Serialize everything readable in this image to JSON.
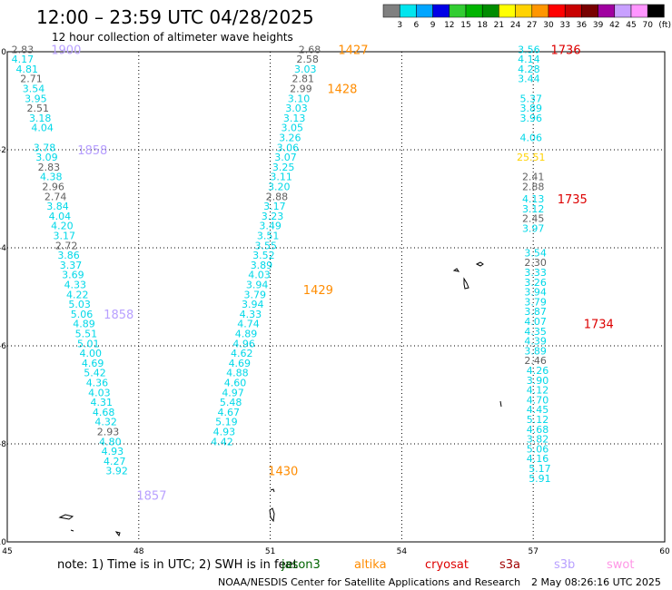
{
  "header": {
    "title": "12:00 – 23:59 UTC 04/28/2025",
    "subtitle": "12 hour collection of altimeter wave heights"
  },
  "colorbar": {
    "labels": [
      "3",
      "6",
      "9",
      "12",
      "15",
      "18",
      "21",
      "24",
      "27",
      "30",
      "33",
      "36",
      "39",
      "42",
      "45",
      "70"
    ],
    "unit": "(ft)",
    "colors": [
      "#808080",
      "#00e5ee",
      "#00a5ff",
      "#0000e6",
      "#32cd32",
      "#00b400",
      "#008c00",
      "#ffff00",
      "#ffd200",
      "#ff9600",
      "#ff0000",
      "#c80000",
      "#780000",
      "#a000a0",
      "#c8a0ff",
      "#ff96ff",
      "#000000"
    ]
  },
  "footer": {
    "note": "note:  1) Time is in UTC; 2) SWH is in feet",
    "credit": "NOAA/NESDIS Center for Satellite Applications and Research",
    "timestamp": "2 May 08:26:16 UTC 2025",
    "legend": [
      {
        "name": "jason3",
        "color": "#006400"
      },
      {
        "name": "altika",
        "color": "#ff8c00"
      },
      {
        "name": "cryosat",
        "color": "#dd0000"
      },
      {
        "name": "s3a",
        "color": "#a00000"
      },
      {
        "name": "s3b",
        "color": "#b8a0ff"
      },
      {
        "name": "swot",
        "color": "#ff96e6"
      }
    ]
  },
  "chart_data": {
    "type": "scatter",
    "xlim": [
      45,
      60
    ],
    "ylim": [
      -10,
      0
    ],
    "x_ticks": [
      45,
      48,
      51,
      54,
      57,
      60
    ],
    "y_ticks": [
      0,
      -2,
      -4,
      -6,
      -8,
      -10
    ],
    "grid": true,
    "tracks": [
      {
        "label_color": "#b8a0ff",
        "time_labels": [
          {
            "text": "1900",
            "x": 46.0,
            "y": 0.05
          },
          {
            "text": "1858",
            "x": 46.6,
            "y": -2.0
          },
          {
            "text": "1858",
            "x": 47.2,
            "y": -5.35
          },
          {
            "text": "1857",
            "x": 47.95,
            "y": -9.05
          }
        ],
        "points": [
          {
            "x": 45.35,
            "y": 0.05,
            "v": "2.83"
          },
          {
            "x": 45.35,
            "y": -0.15,
            "v": "4.17"
          },
          {
            "x": 45.45,
            "y": -0.35,
            "v": "4.81"
          },
          {
            "x": 45.55,
            "y": -0.55,
            "v": "2.71"
          },
          {
            "x": 45.6,
            "y": -0.75,
            "v": "3.54"
          },
          {
            "x": 45.65,
            "y": -0.95,
            "v": "3.95"
          },
          {
            "x": 45.7,
            "y": -1.15,
            "v": "2.51"
          },
          {
            "x": 45.75,
            "y": -1.35,
            "v": "3.18"
          },
          {
            "x": 45.8,
            "y": -1.55,
            "v": "4.04"
          },
          {
            "x": 45.85,
            "y": -1.95,
            "v": "3.78"
          },
          {
            "x": 45.9,
            "y": -2.15,
            "v": "3.09"
          },
          {
            "x": 45.95,
            "y": -2.35,
            "v": "2.83"
          },
          {
            "x": 46.0,
            "y": -2.55,
            "v": "4.38"
          },
          {
            "x": 46.05,
            "y": -2.75,
            "v": "2.96"
          },
          {
            "x": 46.1,
            "y": -2.95,
            "v": "2.74"
          },
          {
            "x": 46.15,
            "y": -3.15,
            "v": "3.84"
          },
          {
            "x": 46.2,
            "y": -3.35,
            "v": "4.04"
          },
          {
            "x": 46.25,
            "y": -3.55,
            "v": "4.20"
          },
          {
            "x": 46.3,
            "y": -3.75,
            "v": "3.17"
          },
          {
            "x": 46.35,
            "y": -3.95,
            "v": "2.72"
          },
          {
            "x": 46.4,
            "y": -4.15,
            "v": "3.86"
          },
          {
            "x": 46.45,
            "y": -4.35,
            "v": "3.37"
          },
          {
            "x": 46.5,
            "y": -4.55,
            "v": "3.69"
          },
          {
            "x": 46.55,
            "y": -4.75,
            "v": "4.33"
          },
          {
            "x": 46.6,
            "y": -4.95,
            "v": "4.22"
          },
          {
            "x": 46.65,
            "y": -5.15,
            "v": "5.03"
          },
          {
            "x": 46.7,
            "y": -5.35,
            "v": "5.06"
          },
          {
            "x": 46.75,
            "y": -5.55,
            "v": "4.89"
          },
          {
            "x": 46.8,
            "y": -5.75,
            "v": "5.51"
          },
          {
            "x": 46.85,
            "y": -5.95,
            "v": "5.01"
          },
          {
            "x": 46.9,
            "y": -6.15,
            "v": "4.00"
          },
          {
            "x": 46.95,
            "y": -6.35,
            "v": "4.69"
          },
          {
            "x": 47.0,
            "y": -6.55,
            "v": "5.42"
          },
          {
            "x": 47.05,
            "y": -6.75,
            "v": "4.36"
          },
          {
            "x": 47.1,
            "y": -6.95,
            "v": "4.03"
          },
          {
            "x": 47.15,
            "y": -7.15,
            "v": "4.31"
          },
          {
            "x": 47.2,
            "y": -7.35,
            "v": "4.68"
          },
          {
            "x": 47.25,
            "y": -7.55,
            "v": "4.32"
          },
          {
            "x": 47.3,
            "y": -7.75,
            "v": "2.93"
          },
          {
            "x": 47.35,
            "y": -7.95,
            "v": "4.80"
          },
          {
            "x": 47.4,
            "y": -8.15,
            "v": "4.93"
          },
          {
            "x": 47.45,
            "y": -8.35,
            "v": "4.27"
          },
          {
            "x": 47.5,
            "y": -8.55,
            "v": "3.92"
          }
        ]
      },
      {
        "label_color": "#ff8c00",
        "time_labels": [
          {
            "text": "1427",
            "x": 52.55,
            "y": 0.05
          },
          {
            "text": "1428",
            "x": 52.3,
            "y": -0.75
          },
          {
            "text": "1429",
            "x": 51.75,
            "y": -4.85
          },
          {
            "text": "1430",
            "x": 50.95,
            "y": -8.55
          }
        ],
        "points": [
          {
            "x": 51.9,
            "y": 0.05,
            "v": "2.68"
          },
          {
            "x": 51.85,
            "y": -0.15,
            "v": "2.58"
          },
          {
            "x": 51.8,
            "y": -0.35,
            "v": "3.03"
          },
          {
            "x": 51.75,
            "y": -0.55,
            "v": "2.81"
          },
          {
            "x": 51.7,
            "y": -0.75,
            "v": "2.99"
          },
          {
            "x": 51.65,
            "y": -0.95,
            "v": "3.10"
          },
          {
            "x": 51.6,
            "y": -1.15,
            "v": "3.03"
          },
          {
            "x": 51.55,
            "y": -1.35,
            "v": "3.13"
          },
          {
            "x": 51.5,
            "y": -1.55,
            "v": "3.05"
          },
          {
            "x": 51.45,
            "y": -1.75,
            "v": "3.26"
          },
          {
            "x": 51.4,
            "y": -1.95,
            "v": "3.06"
          },
          {
            "x": 51.35,
            "y": -2.15,
            "v": "3.07"
          },
          {
            "x": 51.3,
            "y": -2.35,
            "v": "3.25"
          },
          {
            "x": 51.25,
            "y": -2.55,
            "v": "3.11"
          },
          {
            "x": 51.2,
            "y": -2.75,
            "v": "3.20"
          },
          {
            "x": 51.15,
            "y": -2.95,
            "v": "2.88"
          },
          {
            "x": 51.1,
            "y": -3.15,
            "v": "3.17"
          },
          {
            "x": 51.05,
            "y": -3.35,
            "v": "3.23"
          },
          {
            "x": 51.0,
            "y": -3.55,
            "v": "3.49"
          },
          {
            "x": 50.95,
            "y": -3.75,
            "v": "3.51"
          },
          {
            "x": 50.9,
            "y": -3.95,
            "v": "3.55"
          },
          {
            "x": 50.85,
            "y": -4.15,
            "v": "3.52"
          },
          {
            "x": 50.8,
            "y": -4.35,
            "v": "3.89"
          },
          {
            "x": 50.75,
            "y": -4.55,
            "v": "4.03"
          },
          {
            "x": 50.7,
            "y": -4.75,
            "v": "3.94"
          },
          {
            "x": 50.65,
            "y": -4.95,
            "v": "3.79"
          },
          {
            "x": 50.6,
            "y": -5.15,
            "v": "3.94"
          },
          {
            "x": 50.55,
            "y": -5.35,
            "v": "4.33"
          },
          {
            "x": 50.5,
            "y": -5.55,
            "v": "4.74"
          },
          {
            "x": 50.45,
            "y": -5.75,
            "v": "4.89"
          },
          {
            "x": 50.4,
            "y": -5.95,
            "v": "4.96"
          },
          {
            "x": 50.35,
            "y": -6.15,
            "v": "4.62"
          },
          {
            "x": 50.3,
            "y": -6.35,
            "v": "4.69"
          },
          {
            "x": 50.25,
            "y": -6.55,
            "v": "4.88"
          },
          {
            "x": 50.2,
            "y": -6.75,
            "v": "4.60"
          },
          {
            "x": 50.15,
            "y": -6.95,
            "v": "4.97"
          },
          {
            "x": 50.1,
            "y": -7.15,
            "v": "5.48"
          },
          {
            "x": 50.05,
            "y": -7.35,
            "v": "4.67"
          },
          {
            "x": 50.0,
            "y": -7.55,
            "v": "5.19"
          },
          {
            "x": 49.95,
            "y": -7.75,
            "v": "4.93"
          },
          {
            "x": 49.9,
            "y": -7.95,
            "v": "4.42"
          }
        ]
      },
      {
        "label_color": "#dd0000",
        "time_labels": [
          {
            "text": "1736",
            "x": 57.4,
            "y": 0.05
          },
          {
            "text": "1735",
            "x": 57.55,
            "y": -3.0
          },
          {
            "text": "1734",
            "x": 58.15,
            "y": -5.55
          }
        ],
        "points": [
          {
            "x": 56.9,
            "y": 0.05,
            "v": "3.56"
          },
          {
            "x": 56.9,
            "y": -0.15,
            "v": "4.14"
          },
          {
            "x": 56.9,
            "y": -0.35,
            "v": "4.28"
          },
          {
            "x": 56.9,
            "y": -0.55,
            "v": "3.44"
          },
          {
            "x": 56.95,
            "y": -0.95,
            "v": "5.37"
          },
          {
            "x": 56.95,
            "y": -1.15,
            "v": "3.89"
          },
          {
            "x": 56.95,
            "y": -1.35,
            "v": "3.96"
          },
          {
            "x": 56.95,
            "y": -1.75,
            "v": "4.06"
          },
          {
            "x": 56.95,
            "y": -2.15,
            "v": "25.51",
            "c": "#ffd200"
          },
          {
            "x": 57.0,
            "y": -2.55,
            "v": "2.41"
          },
          {
            "x": 57.0,
            "y": -2.75,
            "v": "2.88"
          },
          {
            "x": 57.0,
            "y": -3.0,
            "v": "4.13"
          },
          {
            "x": 57.0,
            "y": -3.2,
            "v": "3.12"
          },
          {
            "x": 57.0,
            "y": -3.4,
            "v": "2.45"
          },
          {
            "x": 57.0,
            "y": -3.6,
            "v": "3.97"
          },
          {
            "x": 57.05,
            "y": -4.1,
            "v": "3.54"
          },
          {
            "x": 57.05,
            "y": -4.3,
            "v": "2.30"
          },
          {
            "x": 57.05,
            "y": -4.5,
            "v": "3.33"
          },
          {
            "x": 57.05,
            "y": -4.7,
            "v": "3.26"
          },
          {
            "x": 57.05,
            "y": -4.9,
            "v": "3.94"
          },
          {
            "x": 57.05,
            "y": -5.1,
            "v": "3.79"
          },
          {
            "x": 57.05,
            "y": -5.3,
            "v": "3.87"
          },
          {
            "x": 57.05,
            "y": -5.5,
            "v": "4.07"
          },
          {
            "x": 57.05,
            "y": -5.7,
            "v": "4.35"
          },
          {
            "x": 57.05,
            "y": -5.9,
            "v": "4.39"
          },
          {
            "x": 57.05,
            "y": -6.1,
            "v": "3.89"
          },
          {
            "x": 57.05,
            "y": -6.3,
            "v": "2.46"
          },
          {
            "x": 57.1,
            "y": -6.5,
            "v": "4.26"
          },
          {
            "x": 57.1,
            "y": -6.7,
            "v": "3.90"
          },
          {
            "x": 57.1,
            "y": -6.9,
            "v": "4.12"
          },
          {
            "x": 57.1,
            "y": -7.1,
            "v": "4.70"
          },
          {
            "x": 57.1,
            "y": -7.3,
            "v": "4.45"
          },
          {
            "x": 57.1,
            "y": -7.5,
            "v": "5.12"
          },
          {
            "x": 57.1,
            "y": -7.7,
            "v": "4.68"
          },
          {
            "x": 57.1,
            "y": -7.9,
            "v": "3.82"
          },
          {
            "x": 57.1,
            "y": -8.1,
            "v": "5.06"
          },
          {
            "x": 57.1,
            "y": -8.3,
            "v": "4.16"
          },
          {
            "x": 57.15,
            "y": -8.5,
            "v": "5.17"
          },
          {
            "x": 57.15,
            "y": -8.7,
            "v": "5.91"
          }
        ]
      }
    ]
  }
}
